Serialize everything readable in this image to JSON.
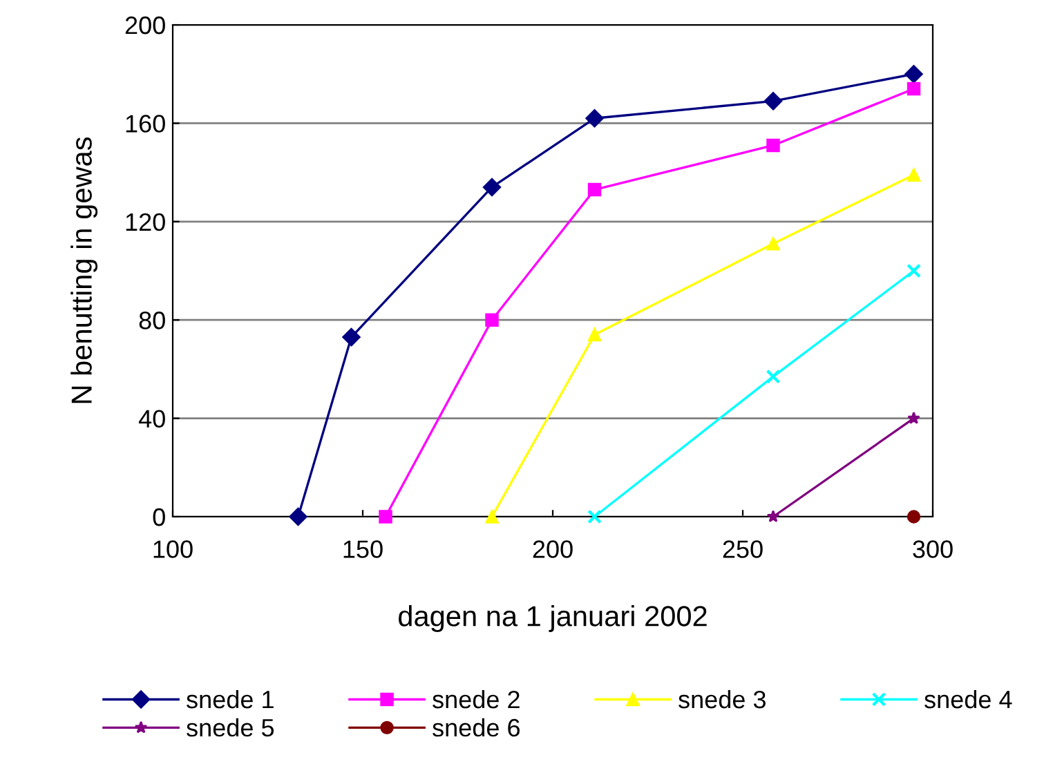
{
  "chart_data": {
    "type": "line",
    "xlabel": "dagen na 1 januari 2002",
    "ylabel": "N benutting in gewas",
    "xlim": [
      100,
      300
    ],
    "xticks": [
      100,
      150,
      200,
      250,
      300
    ],
    "ylim": [
      0,
      200
    ],
    "yticks": [
      0,
      40,
      80,
      120,
      160,
      200
    ],
    "grid": "y",
    "legend": "bottom",
    "series": [
      {
        "name": "snede 1",
        "color": "#000080",
        "marker": "diamond",
        "x": [
          133,
          147,
          184,
          211,
          258,
          295
        ],
        "values": [
          0,
          73,
          134,
          162,
          169,
          180
        ]
      },
      {
        "name": "snede 2",
        "color": "#ff00ff",
        "marker": "square",
        "x": [
          156,
          184,
          211,
          258,
          295
        ],
        "values": [
          0,
          80,
          133,
          151,
          174
        ]
      },
      {
        "name": "snede 3",
        "color": "#ffff00",
        "marker": "triangle",
        "x": [
          184,
          211,
          258,
          295
        ],
        "values": [
          0,
          74,
          111,
          139
        ]
      },
      {
        "name": "snede 4",
        "color": "#00ffff",
        "marker": "cross",
        "x": [
          211,
          258,
          295
        ],
        "values": [
          0,
          57,
          100
        ]
      },
      {
        "name": "snede 5",
        "color": "#800080",
        "marker": "star",
        "x": [
          258,
          295
        ],
        "values": [
          0,
          40
        ]
      },
      {
        "name": "snede 6",
        "color": "#800000",
        "marker": "circle",
        "x": [
          295
        ],
        "values": [
          0
        ]
      }
    ]
  }
}
